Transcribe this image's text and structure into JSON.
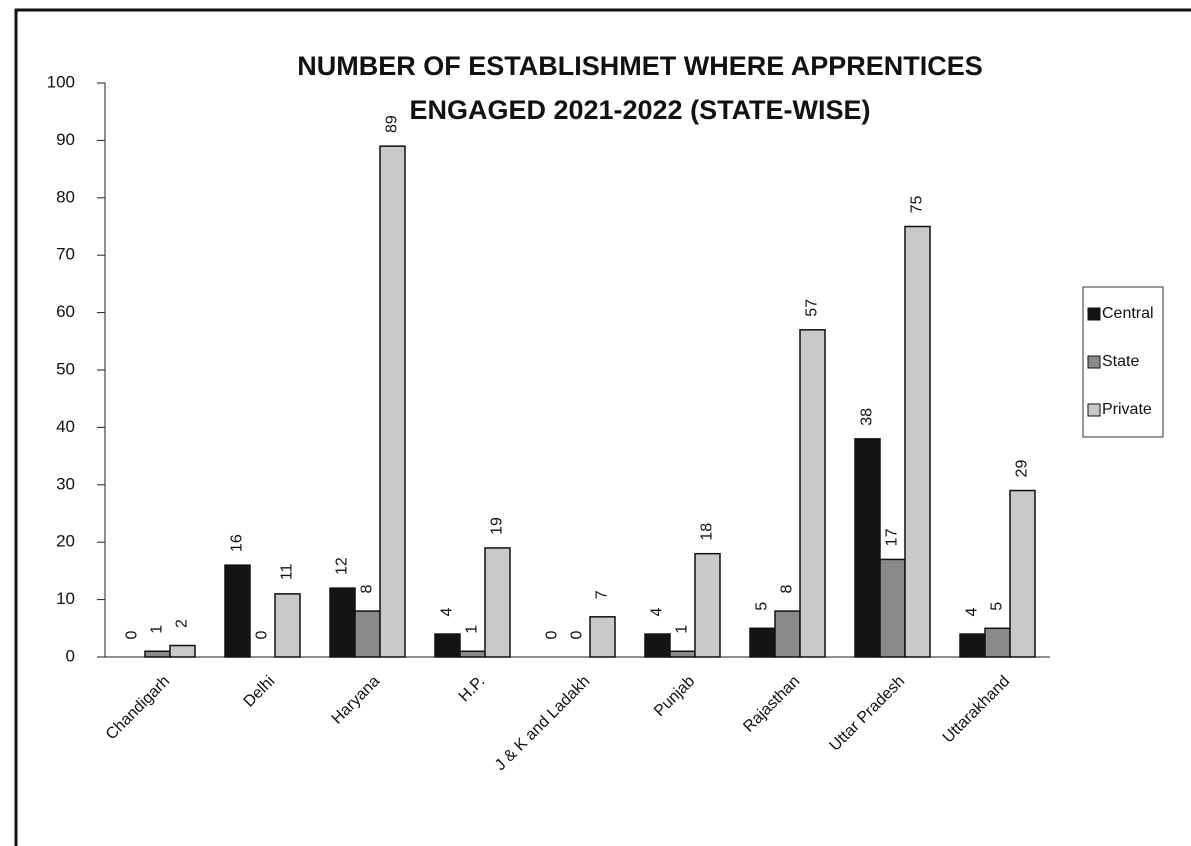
{
  "chart_data": {
    "type": "bar",
    "title": "NUMBER OF ESTABLISHMET WHERE APPRENTICES ENGAGED 2021-2022 (STATE-WISE)",
    "categories": [
      "Chandigarh",
      "Delhi",
      "Haryana",
      "H.P.",
      "J & K and Ladakh",
      "Punjab",
      "Rajasthan",
      "Uttar Pradesh",
      "Uttarakhand"
    ],
    "series": [
      {
        "name": "Central",
        "color": "#141414",
        "values": [
          0,
          16,
          12,
          4,
          0,
          4,
          5,
          38,
          4
        ]
      },
      {
        "name": "State",
        "color": "#8a8a8a",
        "values": [
          1,
          0,
          8,
          1,
          0,
          1,
          8,
          17,
          5
        ]
      },
      {
        "name": "Private",
        "color": "#c9c9c9",
        "values": [
          2,
          11,
          89,
          19,
          7,
          18,
          57,
          75,
          29
        ]
      }
    ],
    "ylim": [
      0,
      100
    ],
    "yticks": [
      0,
      10,
      20,
      30,
      40,
      50,
      60,
      70,
      80,
      90,
      100
    ],
    "grid": false,
    "legend": "right"
  }
}
